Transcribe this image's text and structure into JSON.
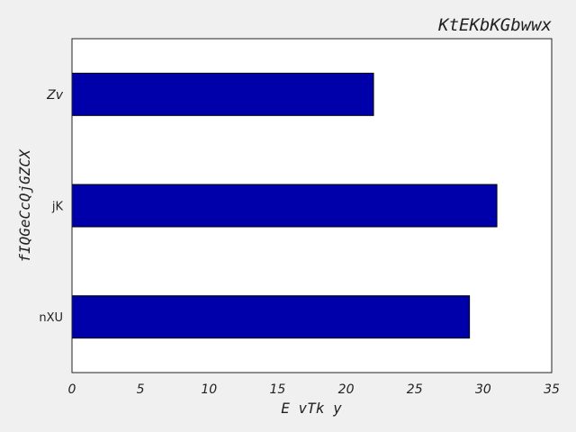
{
  "chart_data": {
    "type": "bar",
    "orientation": "horizontal",
    "title": "KtEKbKGbwwx",
    "xlabel": "E vTk y",
    "ylabel": "fIQGeCcQjGZCX",
    "categories": [
      "Zv",
      "jK",
      "nXU"
    ],
    "values": [
      22,
      31,
      29
    ],
    "xlim": [
      0,
      35
    ],
    "xticks": [
      0,
      5,
      10,
      15,
      20,
      25,
      30,
      35
    ],
    "grid": false,
    "bar_color": "#0000aa",
    "bar_edge_color": "#000000"
  }
}
